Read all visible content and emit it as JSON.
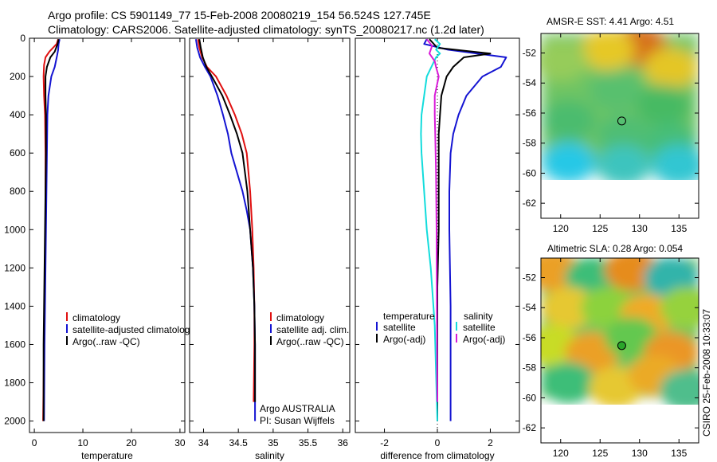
{
  "header": {
    "line1": "Argo profile: CS 5901149_77 15-Feb-2008 20080219_154 56.524S 127.745E",
    "line2": "Climatology: CARS2006. Satellite-adjusted climatology: synTS_20080217.nc (1.2d later)"
  },
  "credit": "CSIRO 25-Feb-2008 10:33:07",
  "colors": {
    "red": "#e01010",
    "blue": "#1414d2",
    "black": "#000000",
    "cyan": "#12dcdc",
    "magenta": "#d81ad8"
  },
  "chart_data": [
    {
      "type": "line",
      "xlabel": "temperature",
      "ylabel": "",
      "xlim": [
        -1,
        31
      ],
      "ylim": [
        2060,
        0
      ],
      "xticks": [
        0,
        10,
        20,
        30
      ],
      "yticks": [
        0,
        200,
        400,
        600,
        800,
        1000,
        1200,
        1400,
        1600,
        1800,
        2000
      ],
      "legend": {
        "position": "bottom-right",
        "entries": [
          "climatology",
          "satellite-adjusted climatology",
          "Argo(..raw -QC)"
        ]
      },
      "series": [
        {
          "name": "climatology",
          "color": "red",
          "x": [
            4.9,
            4.6,
            3.1,
            2.3,
            2.0,
            1.9,
            2.0,
            2.2,
            2.3,
            2.3,
            2.3,
            2.2,
            2.1,
            2.0,
            1.9,
            1.8
          ],
          "y": [
            5,
            30,
            70,
            100,
            140,
            200,
            300,
            400,
            600,
            800,
            1000,
            1200,
            1400,
            1600,
            1800,
            2000
          ]
        },
        {
          "name": "satellite-adjusted climatology",
          "color": "blue",
          "x": [
            5.2,
            5.0,
            4.9,
            4.7,
            4.2,
            3.5,
            2.9,
            2.7,
            2.6,
            2.5,
            2.4,
            2.3,
            2.2,
            2.1,
            2.0
          ],
          "y": [
            5,
            30,
            60,
            90,
            150,
            200,
            300,
            400,
            600,
            800,
            1000,
            1200,
            1400,
            1600,
            2000
          ]
        },
        {
          "name": "Argo(..raw -QC)",
          "color": "black",
          "x": [
            5.0,
            4.8,
            4.2,
            3.3,
            2.6,
            2.3,
            2.3,
            2.4,
            2.4,
            2.3,
            2.2,
            2.1,
            2.0,
            1.9,
            1.9
          ],
          "y": [
            5,
            30,
            70,
            100,
            150,
            200,
            300,
            400,
            600,
            800,
            1000,
            1200,
            1400,
            1600,
            2000
          ]
        }
      ]
    },
    {
      "type": "line",
      "xlabel": "salinity",
      "ylabel": "",
      "xlim": [
        33.8,
        36.1
      ],
      "ylim": [
        2060,
        0
      ],
      "xticks": [
        34,
        34.5,
        35,
        35.5,
        36
      ],
      "yticks": [
        0,
        200,
        400,
        600,
        800,
        1000,
        1200,
        1400,
        1600,
        1800,
        2000
      ],
      "legend": {
        "position": "bottom-right",
        "entries": [
          "climatology",
          "satellite adj. clim.",
          "Argo(..raw -QC)"
        ]
      },
      "annotations": [
        "Argo AUSTRALIA",
        "PI: Susan Wijffels"
      ],
      "series": [
        {
          "name": "climatology",
          "color": "red",
          "x": [
            33.92,
            33.94,
            33.98,
            34.05,
            34.18,
            34.33,
            34.45,
            34.55,
            34.62,
            34.67,
            34.7,
            34.72,
            34.73,
            34.73,
            34.72
          ],
          "y": [
            5,
            50,
            100,
            150,
            200,
            300,
            400,
            500,
            600,
            800,
            1000,
            1200,
            1400,
            1600,
            1900
          ]
        },
        {
          "name": "satellite adj. clim.",
          "color": "blue",
          "x": [
            33.89,
            33.91,
            33.95,
            34.02,
            34.1,
            34.2,
            34.28,
            34.35,
            34.4,
            34.48,
            34.56,
            34.62,
            34.67,
            34.71,
            34.73,
            34.74,
            34.74
          ],
          "y": [
            5,
            50,
            100,
            150,
            200,
            300,
            400,
            500,
            600,
            700,
            800,
            900,
            1000,
            1200,
            1400,
            1600,
            2000
          ]
        },
        {
          "name": "Argo(..raw -QC)",
          "color": "black",
          "x": [
            33.94,
            33.96,
            33.99,
            34.04,
            34.12,
            34.27,
            34.38,
            34.48,
            34.56,
            34.63,
            34.67,
            34.71,
            34.73,
            34.74,
            34.74
          ],
          "y": [
            5,
            50,
            100,
            150,
            200,
            300,
            400,
            500,
            600,
            800,
            1000,
            1200,
            1400,
            1600,
            1900
          ]
        }
      ]
    },
    {
      "type": "line",
      "xlabel": "difference from climatology",
      "ylabel": "",
      "xlim": [
        -3.1,
        3.1
      ],
      "ylim": [
        2060,
        0
      ],
      "xticks": [
        -2,
        0,
        2
      ],
      "yticks": [
        0,
        200,
        400,
        600,
        800,
        1000,
        1200,
        1400,
        1600,
        1800,
        2000
      ],
      "legend": {
        "position": "bottom",
        "entries": [
          "temperature",
          "satellite",
          "Argo(-adj)",
          "salinity",
          "satellite",
          "Argo(-adj)"
        ]
      },
      "series": [
        {
          "name": "satellite",
          "group": "temperature",
          "color": "blue",
          "x": [
            -0.4,
            -0.5,
            0.4,
            2.6,
            2.4,
            1.7,
            1.1,
            0.8,
            0.6,
            0.5,
            0.45,
            0.45,
            0.5,
            0.5,
            0.5
          ],
          "y": [
            5,
            30,
            60,
            100,
            150,
            200,
            300,
            400,
            500,
            600,
            800,
            1000,
            1400,
            1800,
            2000
          ]
        },
        {
          "name": "Argo(-adj)",
          "group": "temperature",
          "color": "black",
          "x": [
            -0.3,
            0.0,
            2.0,
            1.0,
            0.6,
            0.35,
            0.15,
            0.1,
            0.05,
            0.05,
            0.05,
            0.0,
            0.0,
            0.0
          ],
          "y": [
            5,
            50,
            80,
            100,
            150,
            200,
            300,
            400,
            500,
            700,
            1000,
            1300,
            1600,
            2000
          ]
        },
        {
          "name": "satellite",
          "group": "salinity",
          "color": "cyan",
          "x": [
            -0.1,
            0.1,
            -0.05,
            0.1,
            -0.05,
            -0.4,
            -0.5,
            -0.6,
            -0.62,
            -0.6,
            -0.5,
            -0.4,
            -0.25,
            -0.1,
            0.0
          ],
          "y": [
            5,
            30,
            60,
            80,
            100,
            200,
            300,
            400,
            500,
            600,
            800,
            1000,
            1200,
            1500,
            2000
          ]
        },
        {
          "name": "Argo(-adj)",
          "group": "salinity",
          "color": "magenta",
          "x": [
            -0.4,
            -0.2,
            -0.3,
            -0.1,
            -0.05,
            0.05,
            -0.1,
            -0.1,
            -0.08,
            -0.05,
            -0.03,
            -0.02,
            0.0
          ],
          "y": [
            5,
            40,
            80,
            120,
            150,
            200,
            300,
            400,
            500,
            700,
            1000,
            1400,
            1900
          ]
        }
      ]
    },
    {
      "type": "heatmap",
      "title": "AMSR-E SST: 4.41 Argo: 4.51",
      "xlim": [
        117.5,
        137.5
      ],
      "ylim": [
        -63,
        -50.7
      ],
      "xticks": [
        120,
        125,
        130,
        135
      ],
      "yticks": [
        -52,
        -54,
        -56,
        -58,
        -60,
        -62
      ],
      "data_extent_lat": [
        -60,
        -50.7
      ],
      "marker": {
        "lon": 127.745,
        "lat": -56.524,
        "fill": "none"
      },
      "fields": [
        {
          "lon": 130,
          "lat": -51.5,
          "rgb": [
            214,
            112,
            26
          ]
        },
        {
          "lon": 126,
          "lat": -51.8,
          "rgb": [
            230,
            200,
            40
          ]
        },
        {
          "lon": 134,
          "lat": -53.0,
          "rgb": [
            228,
            198,
            40
          ]
        },
        {
          "lon": 120,
          "lat": -52.5,
          "rgb": [
            150,
            204,
            90
          ]
        },
        {
          "lon": 127,
          "lat": -54.5,
          "rgb": [
            88,
            192,
            110
          ]
        },
        {
          "lon": 133,
          "lat": -55.5,
          "rgb": [
            70,
            186,
            100
          ]
        },
        {
          "lon": 121,
          "lat": -56.5,
          "rgb": [
            76,
            188,
            110
          ]
        },
        {
          "lon": 128,
          "lat": -57.5,
          "rgb": [
            80,
            190,
            115
          ]
        },
        {
          "lon": 134,
          "lat": -58.0,
          "rgb": [
            70,
            190,
            120
          ]
        },
        {
          "lon": 121,
          "lat": -59.3,
          "rgb": [
            40,
            200,
            230
          ]
        },
        {
          "lon": 128,
          "lat": -59.5,
          "rgb": [
            60,
            196,
            190
          ]
        },
        {
          "lon": 135,
          "lat": -59.5,
          "rgb": [
            50,
            198,
            210
          ]
        }
      ]
    },
    {
      "type": "heatmap",
      "title": "Altimetric SLA: 0.28 Argo: 0.054",
      "xlim": [
        117.5,
        137.5
      ],
      "ylim": [
        -63,
        -50.7
      ],
      "xticks": [
        120,
        125,
        130,
        135
      ],
      "yticks": [
        -52,
        -54,
        -56,
        -58,
        -60,
        -62
      ],
      "data_extent_lat": [
        -60,
        -50.7
      ],
      "marker": {
        "lon": 127.745,
        "lat": -56.524,
        "fill": "green"
      },
      "fields": [
        {
          "lon": 119,
          "lat": -51.5,
          "rgb": [
            235,
            160,
            40
          ]
        },
        {
          "lon": 124,
          "lat": -52.0,
          "rgb": [
            60,
            190,
            120
          ]
        },
        {
          "lon": 129,
          "lat": -51.5,
          "rgb": [
            230,
            140,
            30
          ]
        },
        {
          "lon": 134,
          "lat": -52.0,
          "rgb": [
            50,
            180,
            170
          ]
        },
        {
          "lon": 121,
          "lat": -54.0,
          "rgb": [
            230,
            200,
            50
          ]
        },
        {
          "lon": 126,
          "lat": -54.0,
          "rgb": [
            140,
            210,
            60
          ]
        },
        {
          "lon": 131,
          "lat": -54.5,
          "rgb": [
            240,
            170,
            40
          ]
        },
        {
          "lon": 136,
          "lat": -54.0,
          "rgb": [
            150,
            210,
            60
          ]
        },
        {
          "lon": 119,
          "lat": -56.5,
          "rgb": [
            200,
            220,
            40
          ]
        },
        {
          "lon": 124,
          "lat": -57.0,
          "rgb": [
            235,
            160,
            40
          ]
        },
        {
          "lon": 129,
          "lat": -56.0,
          "rgb": [
            100,
            200,
            80
          ]
        },
        {
          "lon": 134,
          "lat": -57.0,
          "rgb": [
            235,
            150,
            40
          ]
        },
        {
          "lon": 121,
          "lat": -59.0,
          "rgb": [
            60,
            190,
            120
          ]
        },
        {
          "lon": 127,
          "lat": -59.3,
          "rgb": [
            230,
            200,
            50
          ]
        },
        {
          "lon": 132,
          "lat": -58.5,
          "rgb": [
            235,
            170,
            40
          ]
        },
        {
          "lon": 136,
          "lat": -59.5,
          "rgb": [
            80,
            190,
            140
          ]
        }
      ]
    }
  ]
}
